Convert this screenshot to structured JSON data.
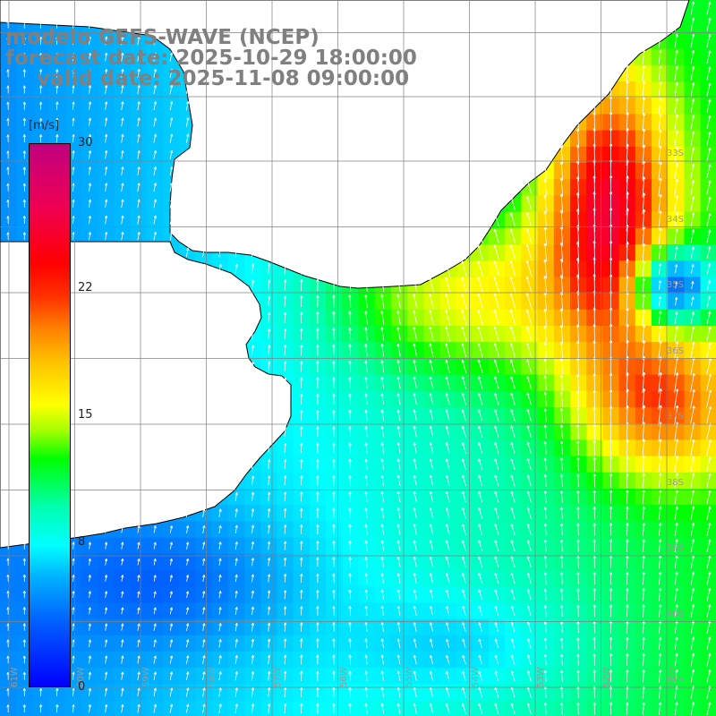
{
  "title": {
    "line1": "modelo GEFS-WAVE (NCEP)",
    "line2": "forecast date: 2025-10-29 18:00:00",
    "line3": "valid date: 2025-11-08 09:00:00"
  },
  "colorbar": {
    "unit": "[m/s]",
    "min": 0,
    "max": 30,
    "ticks": [
      {
        "value": 30,
        "label": "30"
      },
      {
        "value": 22,
        "label": "22"
      },
      {
        "value": 15,
        "label": "15"
      },
      {
        "value": 8,
        "label": "8"
      },
      {
        "value": 0,
        "label": "0"
      }
    ]
  },
  "map": {
    "lon_range": [
      -61,
      -51
    ],
    "lat_range": [
      -41,
      -31
    ],
    "lat_labels": [
      "33S",
      "34S",
      "35S",
      "36S",
      "37S",
      "38S",
      "39S",
      "40S",
      "41S"
    ],
    "lon_labels": [
      "61W",
      "60W",
      "59W",
      "58W",
      "57W",
      "56W",
      "55W",
      "54W",
      "53W",
      "52W",
      "51W"
    ],
    "wind_speed_field_shown": true,
    "wind_vectors_shown": true,
    "coastline_color": "#000000",
    "grid_color": "#808080"
  },
  "colors": {
    "title": "#808080",
    "label": "#9a9a9a"
  }
}
